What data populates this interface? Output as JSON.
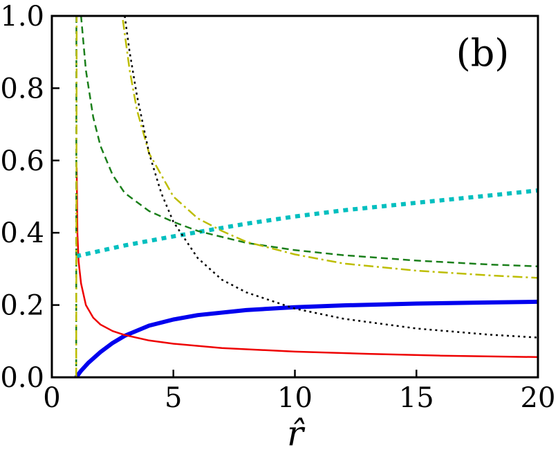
{
  "chart_data": {
    "type": "line",
    "panel_label": "(b)",
    "xlabel": "r̂",
    "ylabel": "",
    "xlim": [
      0,
      20
    ],
    "ylim": [
      0,
      1.0
    ],
    "x_ticks": [
      0,
      5,
      10,
      15,
      20
    ],
    "x_tick_labels": [
      "0",
      "5",
      "10",
      "15",
      "20"
    ],
    "y_ticks": [
      0.0,
      0.2,
      0.4,
      0.6,
      0.8,
      1.0
    ],
    "y_tick_labels": [
      "0.0",
      "0.2",
      "0.4",
      "0.6",
      "0.8",
      "1.0"
    ],
    "grid": false,
    "legend": "none",
    "series": [
      {
        "color": "#0000ee",
        "style": "solid",
        "width": 6,
        "x": [
          1.0,
          1.2,
          1.5,
          2.0,
          2.5,
          3.0,
          4.0,
          5.0,
          6.0,
          8.0,
          10.0,
          12.0,
          15.0,
          18.0,
          20.0
        ],
        "y": [
          0.0,
          0.018,
          0.04,
          0.07,
          0.095,
          0.115,
          0.143,
          0.16,
          0.172,
          0.186,
          0.194,
          0.199,
          0.204,
          0.207,
          0.209
        ]
      },
      {
        "color": "#ee0000",
        "style": "solid",
        "width": 2.5,
        "x": [
          1.02,
          1.05,
          1.1,
          1.2,
          1.4,
          1.7,
          2.0,
          2.5,
          3.0,
          4.0,
          5.0,
          7.0,
          10.0,
          13.0,
          16.0,
          20.0
        ],
        "y": [
          0.58,
          0.4,
          0.32,
          0.26,
          0.2,
          0.165,
          0.146,
          0.128,
          0.117,
          0.102,
          0.093,
          0.081,
          0.071,
          0.065,
          0.06,
          0.056
        ]
      },
      {
        "color": "#00bfbf",
        "style": "dotted",
        "width": 6,
        "x": [
          1.0,
          3.0,
          5.0,
          8.0,
          10.0,
          12.0,
          15.0,
          18.0,
          20.0
        ],
        "y": [
          0.335,
          0.365,
          0.39,
          0.425,
          0.445,
          0.462,
          0.483,
          0.503,
          0.517
        ]
      },
      {
        "color": "#1a7f1a",
        "style": "dashed",
        "width": 2.5,
        "x": [
          1.0,
          1.01,
          1.2,
          1.4,
          1.7,
          2.0,
          2.5,
          3.0,
          4.0,
          5.0,
          6.0,
          8.0,
          10.0,
          12.0,
          15.0,
          18.0,
          20.0
        ],
        "y": [
          0.0,
          1.0,
          1.0,
          0.85,
          0.72,
          0.64,
          0.56,
          0.51,
          0.46,
          0.43,
          0.405,
          0.372,
          0.352,
          0.338,
          0.323,
          0.312,
          0.307
        ]
      },
      {
        "color": "#bdbd00",
        "style": "dashdot",
        "width": 2.5,
        "x": [
          1.0,
          1.02,
          2.9,
          3.2,
          3.5,
          4.0,
          5.0,
          6.0,
          7.0,
          8.0,
          10.0,
          12.0,
          15.0,
          18.0,
          20.0
        ],
        "y": [
          0.0,
          1.0,
          1.0,
          0.85,
          0.74,
          0.62,
          0.5,
          0.44,
          0.405,
          0.375,
          0.34,
          0.315,
          0.295,
          0.282,
          0.275
        ]
      },
      {
        "color": "#000000",
        "style": "dotted",
        "width": 2.5,
        "x": [
          3.0,
          3.2,
          3.5,
          4.0,
          4.5,
          5.0,
          6.0,
          7.0,
          8.0,
          10.0,
          12.0,
          15.0,
          18.0,
          20.0
        ],
        "y": [
          1.0,
          0.9,
          0.78,
          0.62,
          0.51,
          0.43,
          0.33,
          0.27,
          0.235,
          0.19,
          0.162,
          0.135,
          0.118,
          0.11
        ]
      }
    ]
  }
}
